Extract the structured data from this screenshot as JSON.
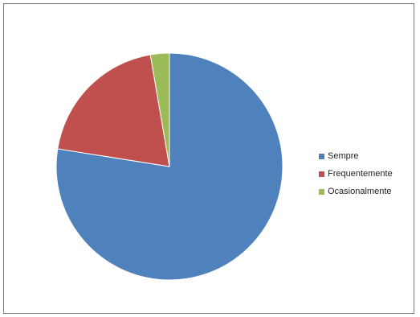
{
  "chart_data": {
    "type": "pie",
    "categories": [
      "Sempre",
      "Frequentemente",
      "Ocasionalmente"
    ],
    "values": [
      77.5,
      19.8,
      2.7
    ],
    "colors": [
      "#4f81bd",
      "#c0504d",
      "#9bbb59"
    ],
    "legend_position": "right",
    "start_angle": "12 o'clock",
    "direction": "clockwise"
  }
}
